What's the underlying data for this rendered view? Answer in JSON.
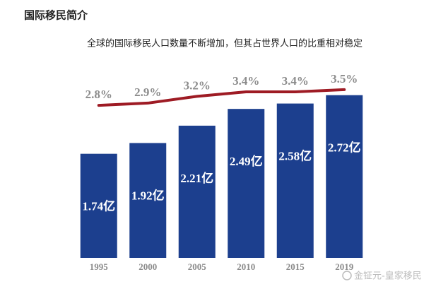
{
  "chart_data": {
    "type": "bar",
    "title": "国际移民简介",
    "subtitle": "全球的国际移民人口数量不断增加，但其占世界人口的比重相对稳定",
    "categories": [
      "1995",
      "2000",
      "2005",
      "2010",
      "2015",
      "2019"
    ],
    "series": [
      {
        "type": "bar",
        "color": "#1c3f8e",
        "values": [
          1.74,
          1.92,
          2.21,
          2.49,
          2.58,
          2.72
        ],
        "value_labels": [
          "1.74亿",
          "1.92亿",
          "2.21亿",
          "2.49亿",
          "2.58亿",
          "2.72亿"
        ]
      },
      {
        "type": "line",
        "axis": "y2",
        "color": "#9e1b24",
        "values": [
          2.8,
          2.9,
          3.2,
          3.4,
          3.4,
          3.5
        ],
        "value_labels": [
          "2.8%",
          "2.9%",
          "3.2%",
          "3.4%",
          "3.4%",
          "3.5%"
        ]
      }
    ],
    "ylim": [
      0,
      3
    ],
    "y2lim": [
      -4,
      4
    ],
    "watermark": "金钲元-皇家移民"
  }
}
